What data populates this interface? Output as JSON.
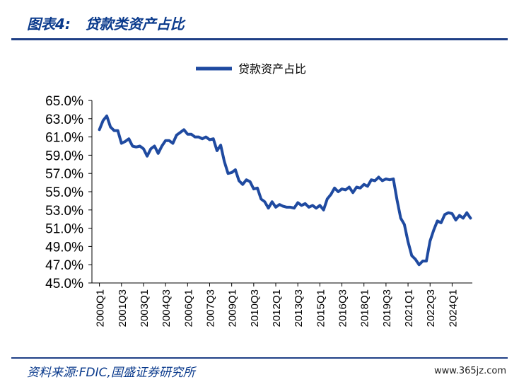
{
  "header": {
    "title": "图表4:   贷款类资产占比"
  },
  "footer": {
    "source": "资料来源:FDIC,国盛证券研究所",
    "watermark": "www.365jz.com"
  },
  "colors": {
    "series": "#1f4aa0",
    "accent": "#0a3a8c"
  },
  "chart_data": {
    "type": "line",
    "title": "",
    "xlabel": "",
    "ylabel": "",
    "ylim": [
      45.0,
      65.0
    ],
    "yticks": [
      "65.0%",
      "63.0%",
      "61.0%",
      "59.0%",
      "57.0%",
      "55.0%",
      "53.0%",
      "51.0%",
      "49.0%",
      "47.0%",
      "45.0%"
    ],
    "xticks": [
      "2000Q1",
      "2001Q3",
      "2003Q1",
      "2004Q3",
      "2006Q1",
      "2007Q3",
      "2009Q1",
      "2010Q3",
      "2012Q1",
      "2013Q3",
      "2015Q1",
      "2016Q3",
      "2018Q1",
      "2019Q3",
      "2021Q1",
      "2022Q3",
      "2024Q1"
    ],
    "legend": {
      "position": "top-center"
    },
    "grid": false,
    "series": [
      {
        "name": "贷款资产占比",
        "x_start": "2000Q1",
        "frequency": "quarterly",
        "values": [
          61.8,
          62.8,
          63.3,
          62.1,
          61.7,
          61.7,
          60.3,
          60.5,
          60.8,
          60.0,
          59.9,
          60.0,
          59.7,
          58.9,
          59.7,
          60.0,
          59.2,
          60.0,
          60.6,
          60.6,
          60.3,
          61.2,
          61.5,
          61.8,
          61.3,
          61.3,
          61.0,
          61.0,
          60.8,
          61.0,
          60.7,
          60.8,
          59.5,
          60.1,
          58.3,
          57.0,
          57.1,
          57.4,
          56.2,
          55.8,
          56.3,
          56.1,
          55.3,
          55.4,
          54.2,
          53.9,
          53.2,
          53.9,
          53.3,
          53.6,
          53.4,
          53.3,
          53.3,
          53.2,
          53.8,
          53.5,
          53.7,
          53.3,
          53.5,
          53.2,
          53.5,
          53.0,
          54.2,
          54.7,
          55.4,
          55.0,
          55.3,
          55.2,
          55.5,
          54.9,
          55.5,
          55.4,
          55.8,
          55.6,
          56.3,
          56.2,
          56.6,
          56.2,
          56.4,
          56.3,
          56.4,
          54.1,
          52.1,
          51.4,
          49.5,
          48.0,
          47.6,
          47.0,
          47.4,
          47.4,
          49.6,
          50.8,
          51.8,
          51.6,
          52.5,
          52.7,
          52.6,
          51.9,
          52.4,
          52.1,
          52.7,
          52.1
        ]
      }
    ]
  }
}
